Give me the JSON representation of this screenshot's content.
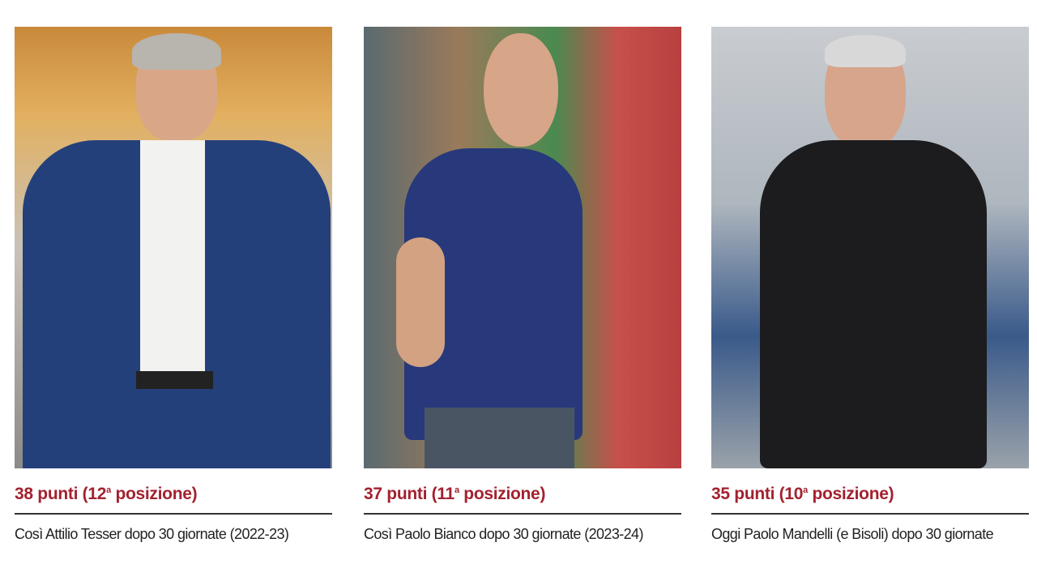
{
  "columns": [
    {
      "points": "38 punti (12",
      "ord": "a",
      "pos": " posizione)",
      "caption": "Così Attilio Tesser dopo 30 giornate (2022-23)"
    },
    {
      "points": "37 punti (11",
      "ord": "a",
      "pos": " posizione)",
      "caption": "Così Paolo Bianco dopo 30 giornate (2023-24)"
    },
    {
      "points": "35 punti (10",
      "ord": "a",
      "pos": " posizione)",
      "caption": "Oggi Paolo Mandelli (e Bisoli) dopo 30 giornate"
    }
  ],
  "colors": {
    "headline": "#a3212f",
    "rule": "#333333"
  }
}
